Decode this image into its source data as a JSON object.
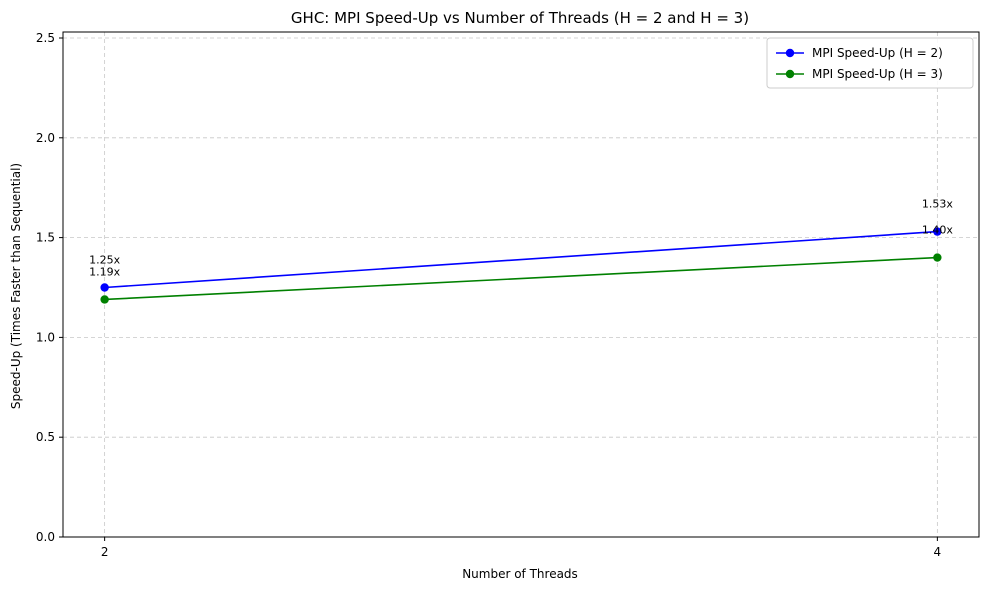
{
  "chart_data": {
    "type": "line",
    "title": "GHC: MPI Speed-Up vs Number of Threads (H = 2 and H = 3)",
    "xlabel": "Number of Threads",
    "ylabel": "Speed-Up (Times Faster than Sequential)",
    "x": [
      2,
      4
    ],
    "xticks": [
      "2",
      "4"
    ],
    "xlim": [
      1.9,
      4.1
    ],
    "ylim": [
      0,
      2.53
    ],
    "yticks": [
      "0.0",
      "0.5",
      "1.0",
      "1.5",
      "2.0",
      "2.5"
    ],
    "grid": true,
    "legend_position": "top-right",
    "series": [
      {
        "name": "MPI Speed-Up (H = 2)",
        "color": "#0000ff",
        "marker": "circle",
        "values": [
          1.25,
          1.53
        ],
        "labels": [
          "1.25x",
          "1.53x"
        ]
      },
      {
        "name": "MPI Speed-Up (H = 3)",
        "color": "#008000",
        "marker": "circle",
        "values": [
          1.19,
          1.4
        ],
        "labels": [
          "1.19x",
          "1.40x"
        ]
      }
    ]
  }
}
